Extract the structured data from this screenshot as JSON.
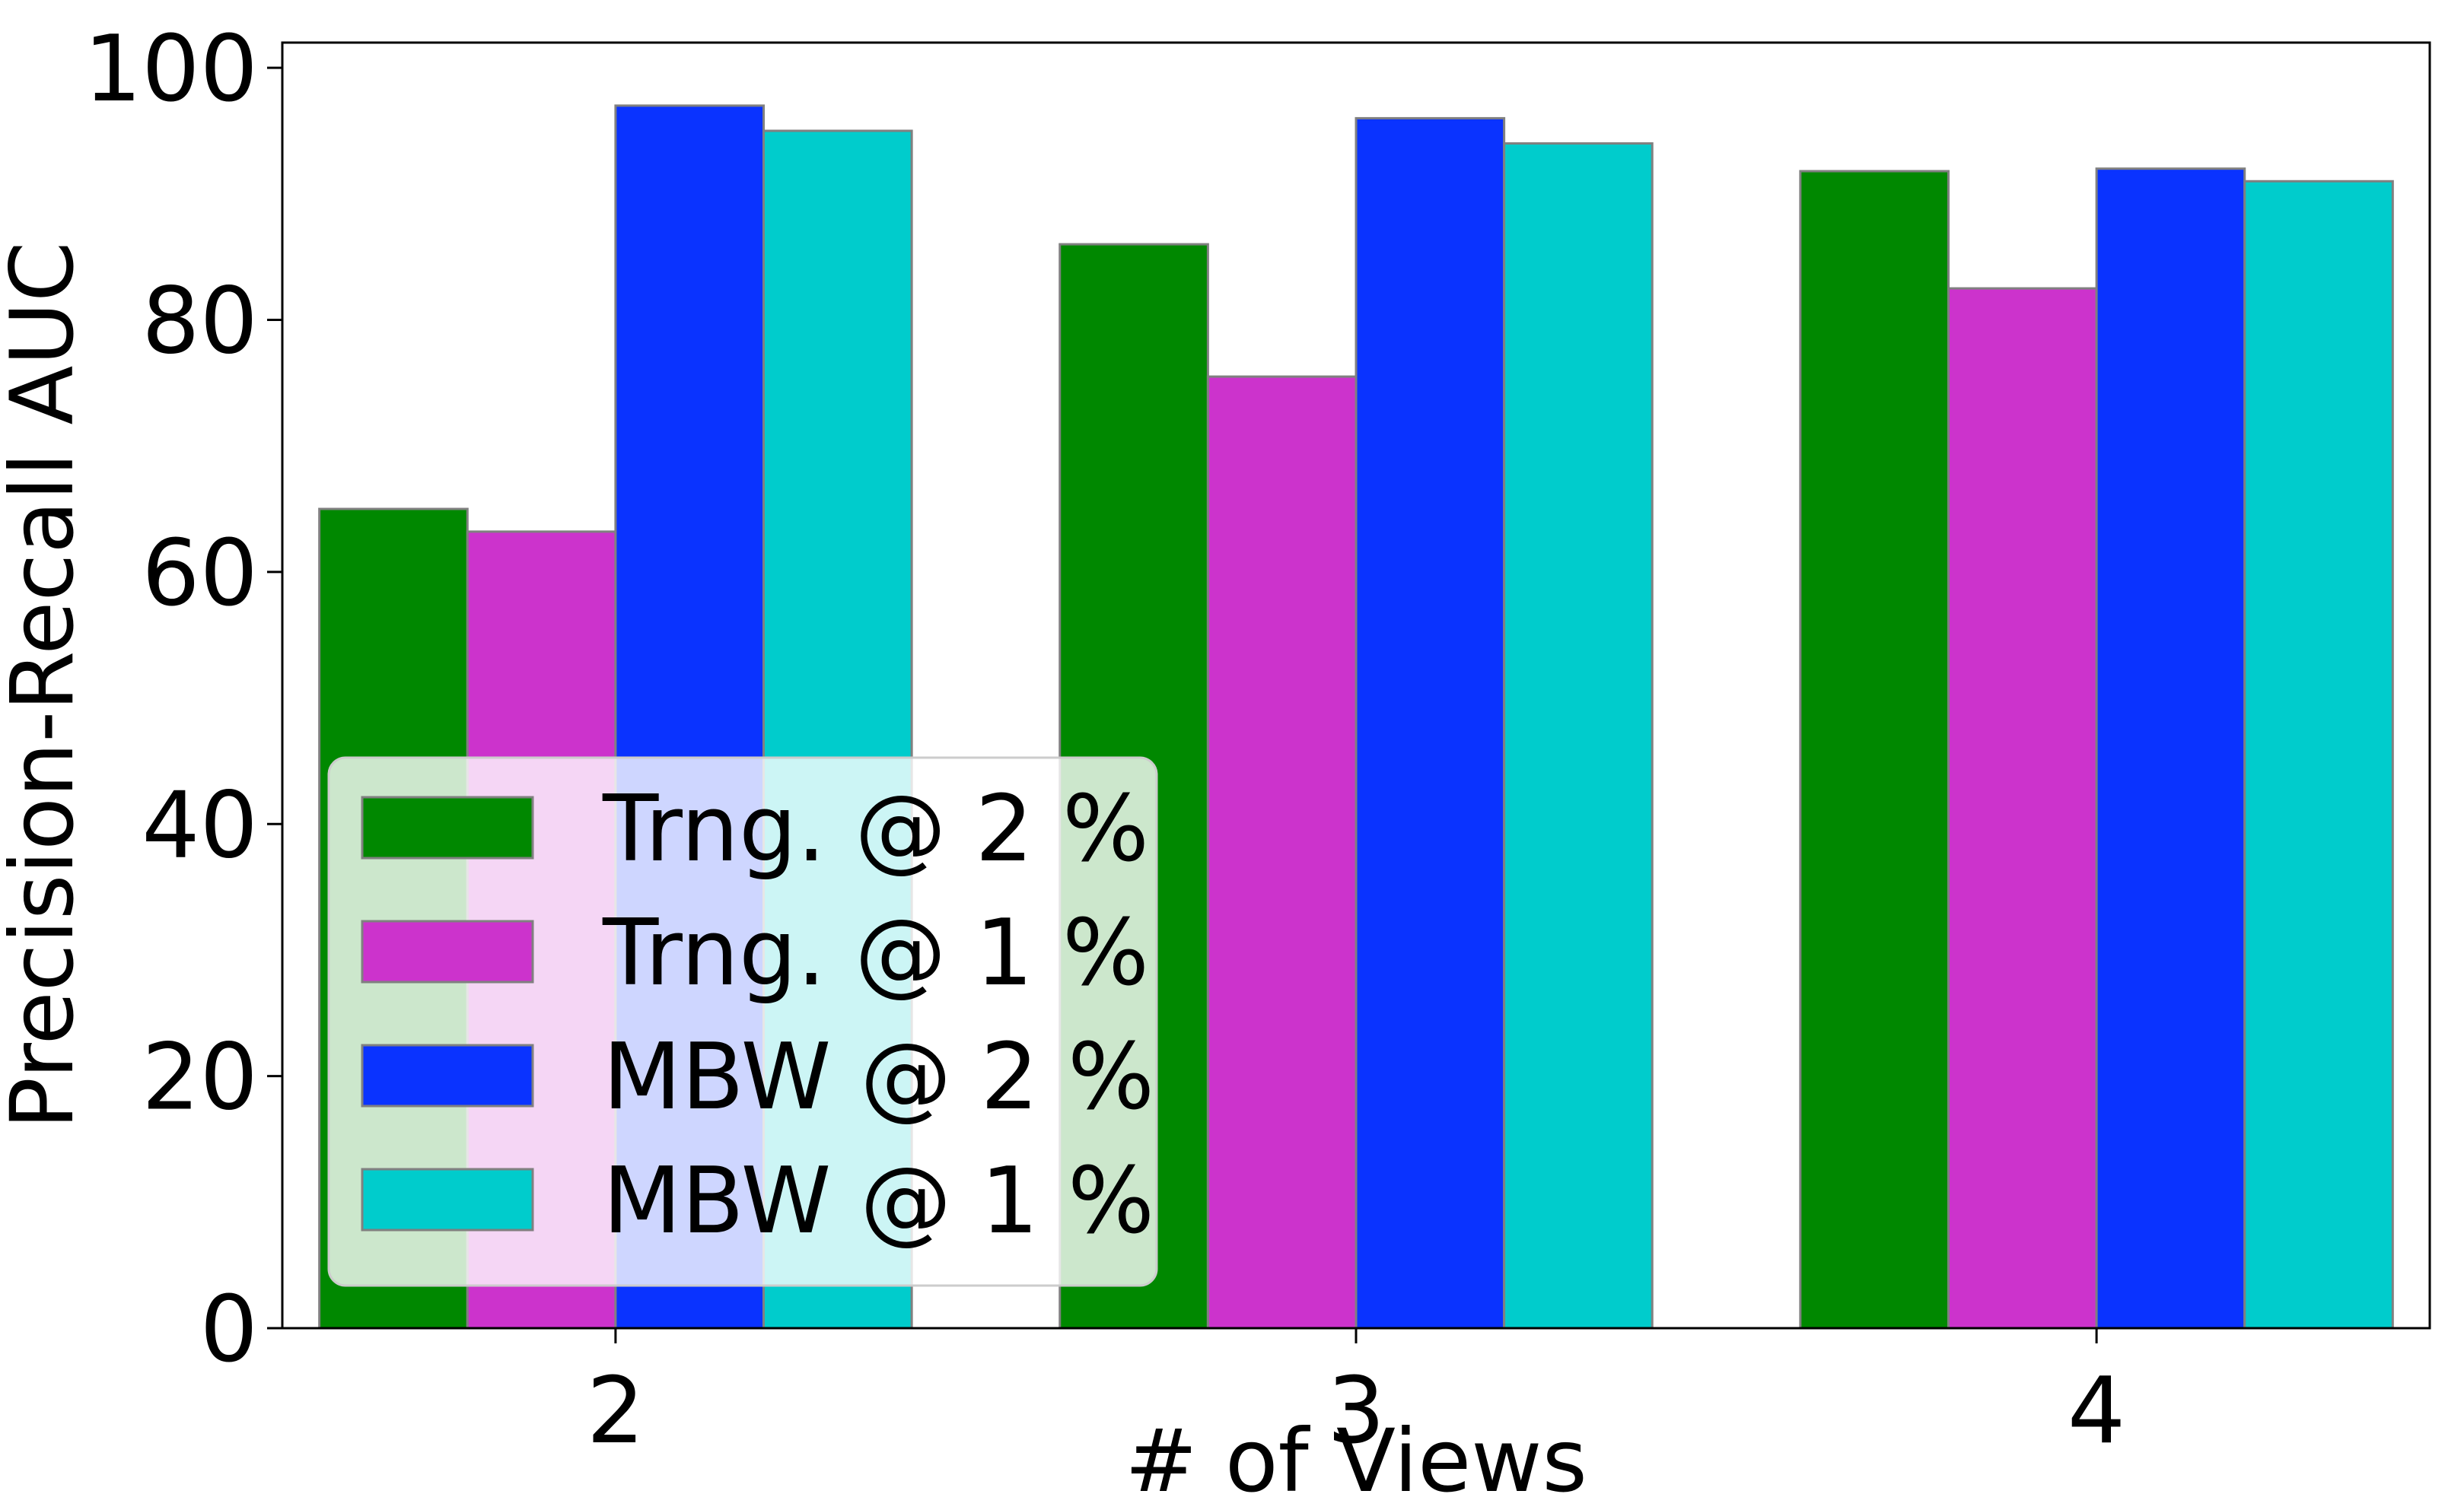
{
  "chart_data": {
    "type": "bar",
    "title": "",
    "xlabel": "# of Views",
    "ylabel": "Precision-Recall AUC",
    "categories": [
      "2",
      "3",
      "4"
    ],
    "ylim": [
      0,
      102
    ],
    "yticks": [
      0,
      20,
      40,
      60,
      80,
      100
    ],
    "grid": false,
    "legend_position": "lower-left",
    "series": [
      {
        "name": "Trng. @ 2 %",
        "color": "#008800",
        "values": [
          65.0,
          86.0,
          91.8
        ]
      },
      {
        "name": "Trng. @ 1 %",
        "color": "#cc33cc",
        "values": [
          63.2,
          75.5,
          82.5
        ]
      },
      {
        "name": "MBW @ 2 %",
        "color": "#0a33ff",
        "values": [
          97.0,
          96.0,
          92.0
        ]
      },
      {
        "name": "MBW @ 1 %",
        "color": "#00cccc",
        "values": [
          95.0,
          94.0,
          91.0
        ]
      }
    ]
  }
}
